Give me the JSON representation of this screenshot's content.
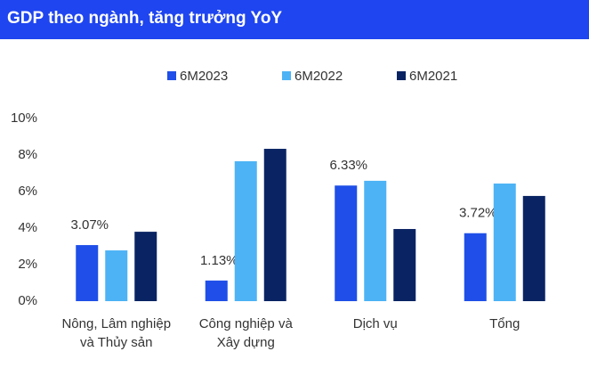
{
  "chart_data": {
    "type": "bar",
    "title": "GDP theo ngành, tăng trưởng YoY",
    "categories": [
      "Nông, Lâm nghiệp và Thủy sản",
      "Công nghiệp và Xây dựng",
      "Dịch vụ",
      "Tổng"
    ],
    "series": [
      {
        "name": "6M2023",
        "color": "#1f4fe8",
        "values": [
          3.07,
          1.13,
          6.33,
          3.72
        ],
        "value_labels": [
          "3.07%",
          "1.13%",
          "6.33%",
          "3.72%"
        ]
      },
      {
        "name": "6M2022",
        "color": "#4db3f5",
        "values": [
          2.78,
          7.66,
          6.59,
          6.44
        ]
      },
      {
        "name": "6M2021",
        "color": "#0a2463",
        "values": [
          3.8,
          8.34,
          3.95,
          5.76
        ]
      }
    ],
    "ylim": [
      0,
      10
    ],
    "yticks": [
      {
        "value": 0,
        "label": "0%"
      },
      {
        "value": 2,
        "label": "2%"
      },
      {
        "value": 4,
        "label": "4%"
      },
      {
        "value": 6,
        "label": "6%"
      },
      {
        "value": 8,
        "label": "8%"
      },
      {
        "value": 10,
        "label": "10%"
      }
    ],
    "grid": false,
    "legend": "top"
  }
}
